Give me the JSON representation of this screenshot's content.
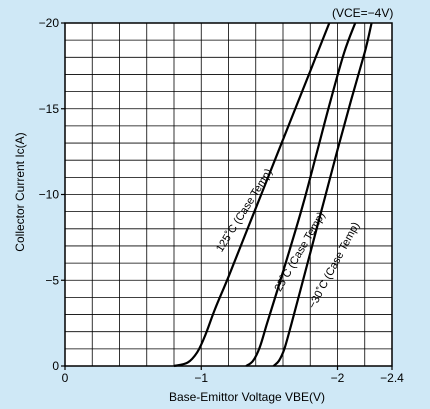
{
  "chart_data": {
    "type": "line",
    "title": "",
    "condition": "(VCE=−4V)",
    "xlabel": "Base-Emittor Voltage VBE(V)",
    "ylabel": "Collector Current Ic(A)",
    "xlim": [
      0,
      -2.4
    ],
    "ylim": [
      0,
      -20
    ],
    "x_ticks": [
      {
        "value": 0,
        "label": "0"
      },
      {
        "value": -1,
        "label": "−1"
      },
      {
        "value": -2,
        "label": "−2"
      },
      {
        "value": -2.4,
        "label": "−2.4"
      }
    ],
    "y_ticks": [
      {
        "value": 0,
        "label": "0"
      },
      {
        "value": -5,
        "label": "−5"
      },
      {
        "value": -10,
        "label": "−10"
      },
      {
        "value": -15,
        "label": "−15"
      },
      {
        "value": -20,
        "label": "−20"
      }
    ],
    "grid": true,
    "series": [
      {
        "name": "125˚C (Case Temp)",
        "x": [
          -0.8,
          -0.9,
          -0.97,
          -1.03,
          -1.1,
          -1.2,
          -1.35,
          -1.5,
          -1.65,
          -1.8,
          -1.94
        ],
        "y": [
          0,
          -0.2,
          -0.8,
          -1.8,
          -3.3,
          -5.2,
          -8.2,
          -11.2,
          -14.2,
          -17.2,
          -20
        ]
      },
      {
        "name": "25˚C (Case Temp)",
        "x": [
          -1.33,
          -1.38,
          -1.43,
          -1.48,
          -1.55,
          -1.65,
          -1.75,
          -1.85,
          -1.95,
          -2.05,
          -2.13
        ],
        "y": [
          0,
          -0.3,
          -1.1,
          -2.4,
          -4.2,
          -6.8,
          -9.5,
          -12.5,
          -15.5,
          -18.3,
          -20
        ]
      },
      {
        "name": "−30˚C (Case Temp)",
        "x": [
          -1.53,
          -1.57,
          -1.61,
          -1.66,
          -1.72,
          -1.8,
          -1.9,
          -2.0,
          -2.1,
          -2.2,
          -2.25
        ],
        "y": [
          0,
          -0.3,
          -1.0,
          -2.4,
          -4.2,
          -6.6,
          -9.6,
          -12.6,
          -15.5,
          -18.3,
          -20
        ]
      }
    ]
  }
}
